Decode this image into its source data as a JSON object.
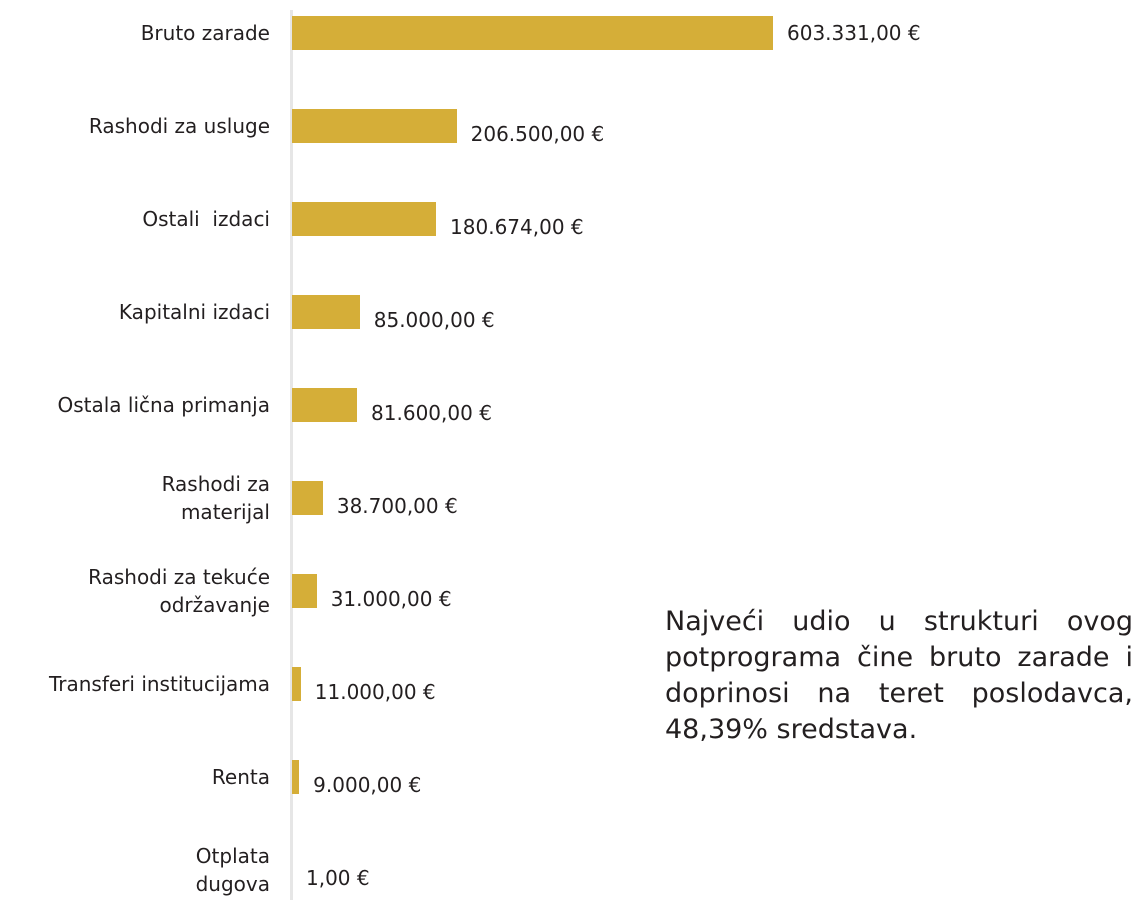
{
  "chart_data": {
    "type": "bar",
    "orientation": "horizontal",
    "color": "#d5ae38",
    "categories": [
      "Bruto zarade",
      "Rashodi za usluge",
      "Ostali  izdaci",
      "Kapitalni izdaci",
      "Ostala lična primanja",
      "Rashodi za\nmaterijal",
      "Rashodi za tekuće\nodržavanje",
      "Transferi institucijama",
      "Renta",
      "Otplata\ndugova"
    ],
    "values": [
      603331,
      206500,
      180674,
      85000,
      81600,
      38700,
      31000,
      11000,
      9000,
      1
    ],
    "value_labels": [
      "603.331,00 €",
      "206.500,00 €",
      "180.674,00 €",
      "85.000,00 €",
      "81.600,00 €",
      "38.700,00 €",
      "31.000,00 €",
      "11.000,00 €",
      "9.000,00 €",
      "1,00 €"
    ],
    "annotation": "Najveći udio u strukturi ovog potprograma čine bruto zarade i doprinosi na teret poslodavca, 48,39% sredstava."
  }
}
